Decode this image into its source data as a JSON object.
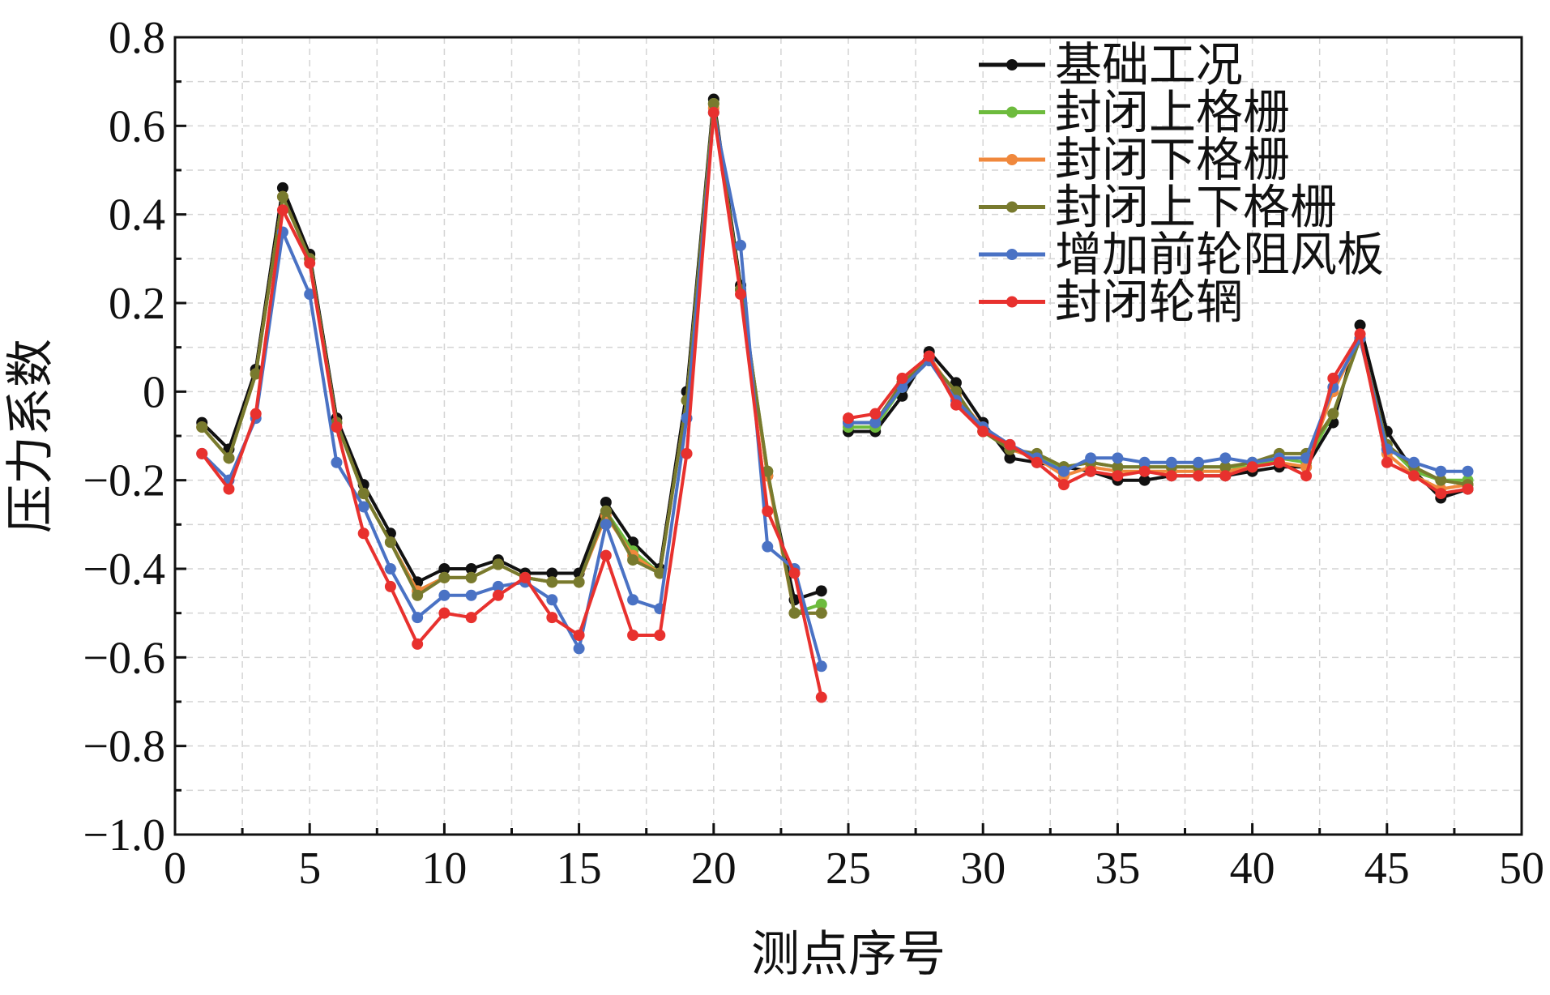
{
  "chart_data": {
    "type": "line",
    "xlabel": "测点序号",
    "ylabel": "压力系数",
    "xlim": [
      0,
      50
    ],
    "ylim": [
      -1.0,
      0.8
    ],
    "xticks": [
      "0",
      "5",
      "10",
      "15",
      "20",
      "25",
      "30",
      "35",
      "40",
      "45",
      "50"
    ],
    "yticks": [
      "0.8",
      "0.6",
      "0.4",
      "0.2",
      "0",
      "−0.2",
      "−0.4",
      "−0.6",
      "−0.8",
      "−1.0"
    ],
    "grid": true,
    "legend_position": "top-right",
    "segment_break_after_x": 24,
    "x": [
      1,
      2,
      3,
      4,
      5,
      6,
      7,
      8,
      9,
      10,
      11,
      12,
      13,
      14,
      15,
      16,
      17,
      18,
      19,
      20,
      21,
      22,
      23,
      24,
      25,
      26,
      27,
      28,
      29,
      30,
      31,
      32,
      33,
      34,
      35,
      36,
      37,
      38,
      39,
      40,
      41,
      42,
      43,
      44,
      45,
      46,
      47,
      48
    ],
    "series": [
      {
        "name": "基础工况",
        "color": "#111111",
        "values": [
          -0.07,
          -0.13,
          0.05,
          0.46,
          0.31,
          -0.06,
          -0.21,
          -0.32,
          -0.43,
          -0.4,
          -0.4,
          -0.38,
          -0.41,
          -0.41,
          -0.41,
          -0.25,
          -0.34,
          -0.4,
          0.0,
          0.66,
          0.24,
          -0.19,
          -0.47,
          -0.45,
          -0.09,
          -0.09,
          -0.01,
          0.09,
          0.02,
          -0.07,
          -0.15,
          -0.16,
          -0.17,
          -0.18,
          -0.2,
          -0.2,
          -0.19,
          -0.19,
          -0.19,
          -0.18,
          -0.17,
          -0.17,
          -0.07,
          0.15,
          -0.09,
          -0.18,
          -0.24,
          -0.22
        ]
      },
      {
        "name": "封闭上格栅",
        "color": "#6dbb3d",
        "values": [
          -0.08,
          -0.15,
          0.04,
          0.44,
          0.3,
          -0.07,
          -0.23,
          -0.34,
          -0.45,
          -0.42,
          -0.42,
          -0.39,
          -0.42,
          -0.43,
          -0.43,
          -0.27,
          -0.36,
          -0.41,
          -0.02,
          0.65,
          0.23,
          -0.18,
          -0.5,
          -0.48,
          -0.08,
          -0.08,
          0.01,
          0.07,
          0.0,
          -0.09,
          -0.13,
          -0.15,
          -0.17,
          -0.16,
          -0.17,
          -0.17,
          -0.17,
          -0.17,
          -0.17,
          -0.17,
          -0.15,
          -0.16,
          -0.05,
          0.12,
          -0.12,
          -0.18,
          -0.2,
          -0.2
        ]
      },
      {
        "name": "封闭下格栅",
        "color": "#f0883c",
        "values": [
          -0.08,
          -0.15,
          0.04,
          0.44,
          0.3,
          -0.07,
          -0.23,
          -0.34,
          -0.45,
          -0.42,
          -0.42,
          -0.39,
          -0.42,
          -0.43,
          -0.43,
          -0.28,
          -0.37,
          -0.41,
          -0.02,
          0.64,
          0.23,
          -0.19,
          -0.5,
          -0.5,
          -0.07,
          -0.07,
          0.02,
          0.08,
          -0.01,
          -0.08,
          -0.13,
          -0.15,
          -0.19,
          -0.17,
          -0.18,
          -0.18,
          -0.18,
          -0.18,
          -0.18,
          -0.17,
          -0.16,
          -0.17,
          0.0,
          0.12,
          -0.14,
          -0.19,
          -0.22,
          -0.21
        ]
      },
      {
        "name": "封闭上下格栅",
        "color": "#787a2e",
        "values": [
          -0.08,
          -0.15,
          0.04,
          0.44,
          0.3,
          -0.07,
          -0.23,
          -0.34,
          -0.46,
          -0.42,
          -0.42,
          -0.39,
          -0.42,
          -0.43,
          -0.43,
          -0.27,
          -0.38,
          -0.41,
          -0.02,
          0.65,
          0.23,
          -0.18,
          -0.5,
          -0.5,
          -0.07,
          -0.07,
          0.02,
          0.07,
          0.0,
          -0.09,
          -0.13,
          -0.14,
          -0.17,
          -0.16,
          -0.17,
          -0.17,
          -0.17,
          -0.17,
          -0.17,
          -0.16,
          -0.14,
          -0.14,
          -0.05,
          0.12,
          -0.12,
          -0.17,
          -0.2,
          -0.21
        ]
      },
      {
        "name": "增加前轮阻风板",
        "color": "#4a72c4",
        "values": [
          -0.14,
          -0.2,
          -0.06,
          0.36,
          0.22,
          -0.16,
          -0.26,
          -0.4,
          -0.51,
          -0.46,
          -0.46,
          -0.44,
          -0.43,
          -0.47,
          -0.58,
          -0.3,
          -0.47,
          -0.49,
          -0.06,
          0.63,
          0.33,
          -0.35,
          -0.4,
          -0.62,
          -0.07,
          -0.07,
          0.01,
          0.07,
          -0.02,
          -0.08,
          -0.12,
          -0.15,
          -0.18,
          -0.15,
          -0.15,
          -0.16,
          -0.16,
          -0.16,
          -0.15,
          -0.16,
          -0.15,
          -0.15,
          0.01,
          0.12,
          -0.13,
          -0.16,
          -0.18,
          -0.18
        ]
      },
      {
        "name": "封闭轮辋",
        "color": "#e8312e",
        "values": [
          -0.14,
          -0.22,
          -0.05,
          0.41,
          0.29,
          -0.08,
          -0.32,
          -0.44,
          -0.57,
          -0.5,
          -0.51,
          -0.46,
          -0.42,
          -0.51,
          -0.55,
          -0.37,
          -0.55,
          -0.55,
          -0.14,
          0.63,
          0.22,
          -0.27,
          -0.41,
          -0.69,
          -0.06,
          -0.05,
          0.03,
          0.08,
          -0.03,
          -0.09,
          -0.12,
          -0.16,
          -0.21,
          -0.18,
          -0.19,
          -0.18,
          -0.19,
          -0.19,
          -0.19,
          -0.17,
          -0.16,
          -0.19,
          0.03,
          0.13,
          -0.16,
          -0.19,
          -0.23,
          -0.22
        ]
      }
    ]
  }
}
